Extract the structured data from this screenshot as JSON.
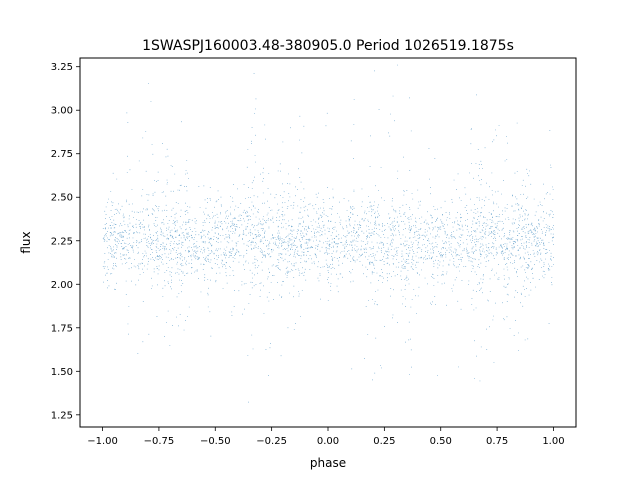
{
  "chart_data": {
    "type": "scatter",
    "title": "1SWASPJ160003.48-380905.0 Period 1026519.1875s",
    "xlabel": "phase",
    "ylabel": "flux",
    "xlim": [
      -1.1,
      1.1
    ],
    "ylim": [
      1.18,
      3.3
    ],
    "xticks": [
      -1.0,
      -0.75,
      -0.5,
      -0.25,
      0.0,
      0.25,
      0.5,
      0.75,
      1.0
    ],
    "xtick_labels": [
      "−1.00",
      "−0.75",
      "−0.50",
      "−0.25",
      "0.00",
      "0.25",
      "0.50",
      "0.75",
      "1.00"
    ],
    "yticks": [
      1.25,
      1.5,
      1.75,
      2.0,
      2.25,
      2.5,
      2.75,
      3.0,
      3.25
    ],
    "ytick_labels": [
      "1.25",
      "1.50",
      "1.75",
      "2.00",
      "2.25",
      "2.50",
      "2.75",
      "3.00",
      "3.25"
    ],
    "grid": false,
    "marker_color": "#1f77b4",
    "series": [
      {
        "phase_range": [
          -1.0,
          1.0
        ],
        "flux_core_range": [
          2.05,
          2.5
        ],
        "flux_center": 2.25,
        "flux_full_range": [
          1.3,
          3.27
        ]
      }
    ]
  }
}
